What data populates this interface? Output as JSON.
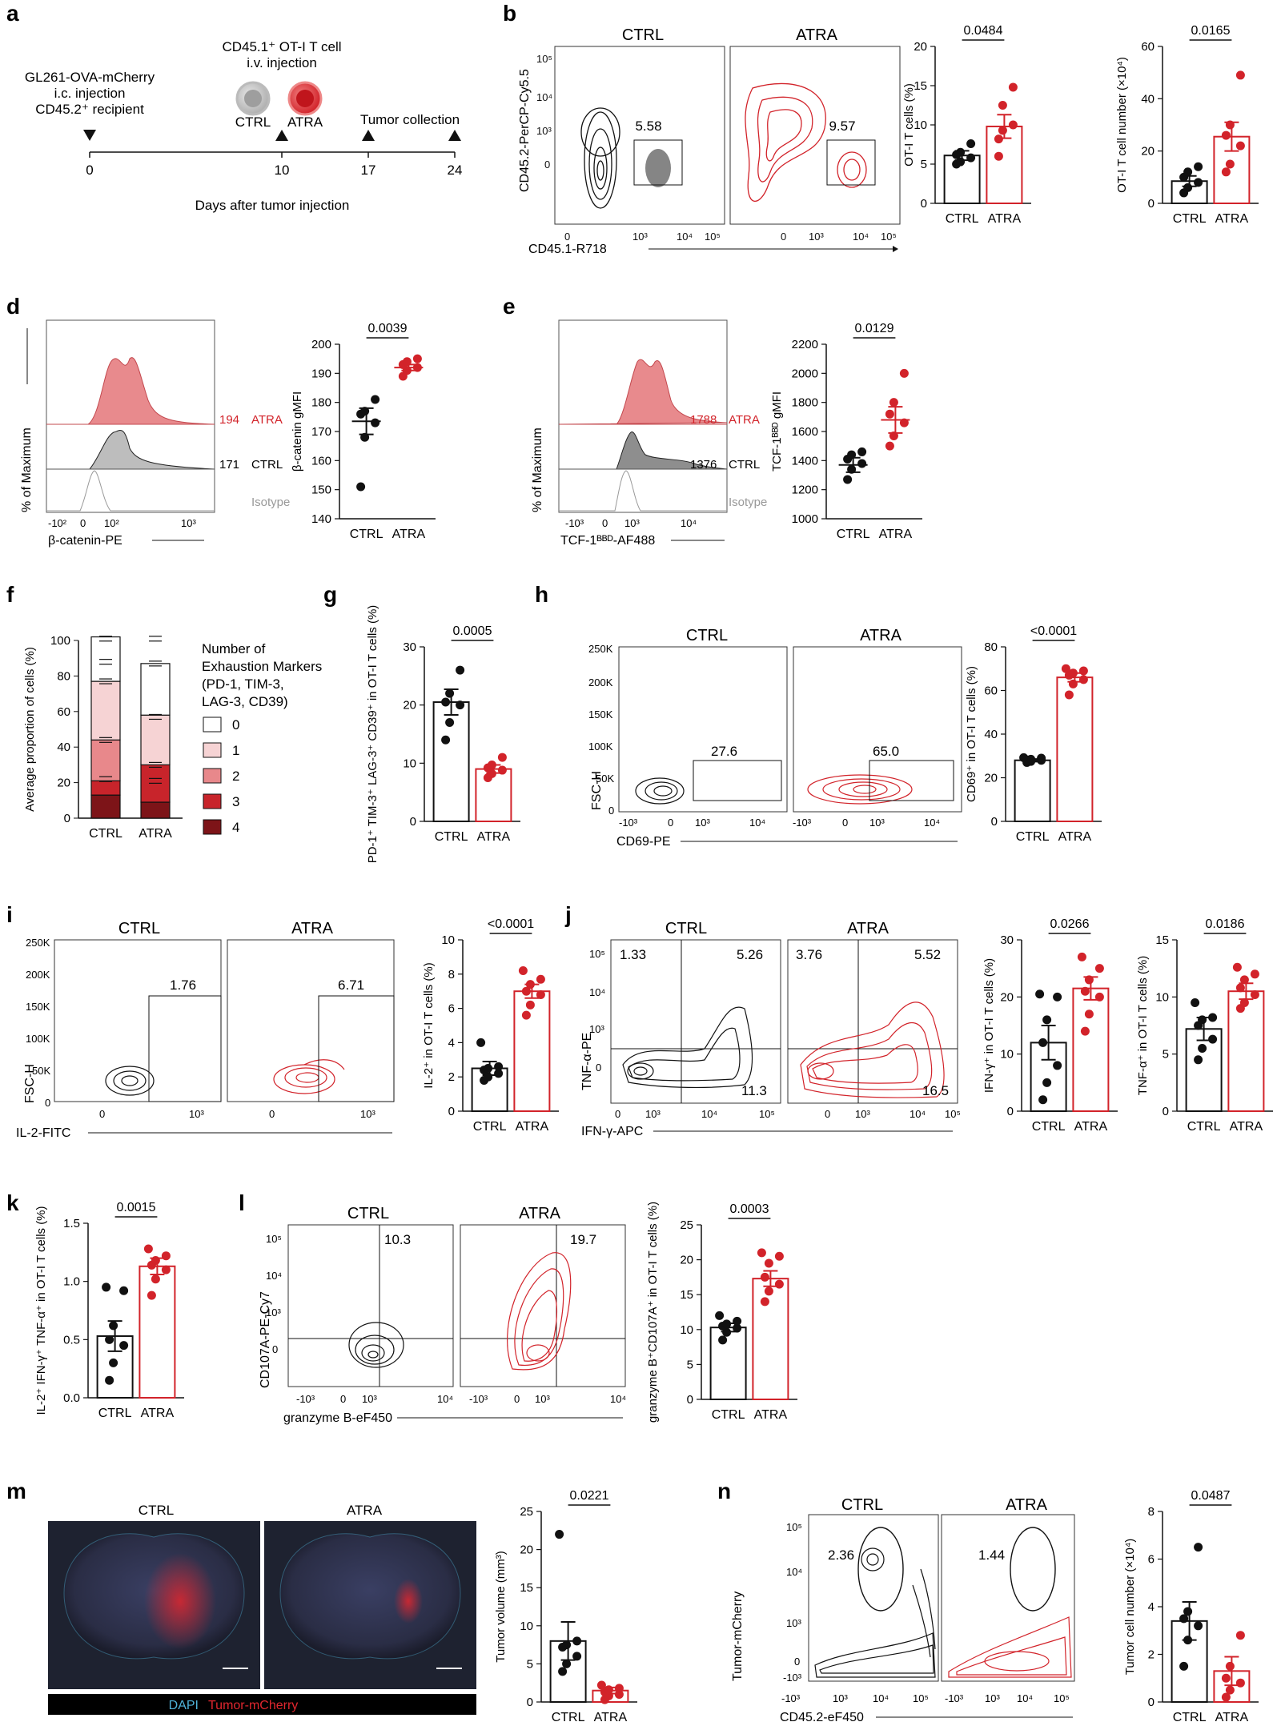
{
  "colors": {
    "ctrl": "#111111",
    "atra": "#d2232a",
    "isotype": "#9a9a9a",
    "atra_fill": "#e88a8d",
    "ctrl_fill": "#b8b8b8",
    "dapi": "#4fb3d9",
    "mcherry": "#e0262e"
  },
  "panels": {
    "a": {
      "letter": "a",
      "cell_inj": "GL261-OVA-mCherry",
      "cell_inj2": "i.c. injection",
      "recipient": "CD45.2⁺ recipient",
      "tcell": "CD45.1⁺ OT-I T cell",
      "tcell2": "i.v. injection",
      "ctrl": "CTRL",
      "atra": "ATRA",
      "collection": "Tumor collection",
      "days": [
        "0",
        "10",
        "17",
        "24"
      ],
      "xlabel": "Days after tumor injection"
    },
    "b": {
      "letter": "b",
      "ctrl": "CTRL",
      "atra": "ATRA",
      "ylabel": "CD45.2-PerCP-Cy5.5",
      "xlabel": "CD45.1-R718",
      "gate_ctrl": "5.58",
      "gate_atra": "9.57"
    },
    "d": {
      "letter": "d",
      "ylabel": "% of Maximum",
      "xlabel": "β-catenin-PE",
      "lab_atra": "194",
      "lab_ctrl": "171",
      "atra": "ATRA",
      "ctrl": "CTRL",
      "iso": "Isotype"
    },
    "e": {
      "letter": "e",
      "ylabel": "% of Maximum",
      "xlabel": "TCF-1ᴮᴮᴰ-AF488",
      "lab_atra": "1788",
      "lab_ctrl": "1376",
      "atra": "ATRA",
      "ctrl": "CTRL",
      "iso": "Isotype"
    },
    "f": {
      "letter": "f",
      "legend_title1": "Number of",
      "legend_title2": "Exhaustion Markers",
      "legend_title3": "(PD-1, TIM-3,",
      "legend_title4": "LAG-3, CD39)",
      "levels": [
        "0",
        "1",
        "2",
        "3",
        "4"
      ]
    },
    "g": {
      "letter": "g"
    },
    "h": {
      "letter": "h",
      "ctrl": "CTRL",
      "atra": "ATRA",
      "ylabel": "FSC-H",
      "xlabel": "CD69-PE",
      "gate_ctrl": "27.6",
      "gate_atra": "65.0"
    },
    "i": {
      "letter": "i",
      "ctrl": "CTRL",
      "atra": "ATRA",
      "ylabel": "FSC-H",
      "xlabel": "IL-2-FITC",
      "gate_ctrl": "1.76",
      "gate_atra": "6.71"
    },
    "j": {
      "letter": "j",
      "ctrl": "CTRL",
      "atra": "ATRA",
      "ylabel": "TNF-α-PE",
      "xlabel": "IFN-γ-APC",
      "q_ctrl": [
        "1.33",
        "5.26",
        "11.3"
      ],
      "q_atra": [
        "3.76",
        "5.52",
        "16.5"
      ]
    },
    "k": {
      "letter": "k"
    },
    "l": {
      "letter": "l",
      "ctrl": "CTRL",
      "atra": "ATRA",
      "ylabel": "CD107A-PE-Cy7",
      "xlabel": "granzyme B-eF450",
      "gate_ctrl": "10.3",
      "gate_atra": "19.7"
    },
    "m": {
      "letter": "m",
      "ctrl": "CTRL",
      "atra": "ATRA",
      "dapi": "DAPI",
      "mcherry": "Tumor-mCherry"
    },
    "n": {
      "letter": "n",
      "ctrl": "CTRL",
      "atra": "ATRA",
      "ylabel": "Tumor-mCherry",
      "xlabel": "CD45.2-eF450",
      "gate_ctrl": "2.36",
      "gate_atra": "1.44"
    }
  },
  "chart_data": [
    {
      "panel": "b",
      "type": "bar",
      "categories": [
        "CTRL",
        "ATRA"
      ],
      "ylabel": "OT-I T cells (%)",
      "ylim": [
        0,
        20
      ],
      "yticks": [
        0,
        5,
        10,
        15,
        20
      ],
      "pvalue": "0.0484",
      "means": [
        6.1,
        9.8
      ],
      "sem": [
        0.6,
        1.5
      ],
      "points": [
        [
          5.0,
          6.5,
          5.8,
          6.2,
          5.3,
          7.6
        ],
        [
          6.0,
          9.3,
          10.0,
          8.2,
          12.5,
          14.8
        ]
      ]
    },
    {
      "panel": "c",
      "type": "bar",
      "categories": [
        "CTRL",
        "ATRA"
      ],
      "ylabel": "OT-I T cell number (×10⁴)",
      "ylim": [
        0,
        60
      ],
      "yticks": [
        0,
        20,
        40,
        60
      ],
      "pvalue": "0.0165",
      "means": [
        8.5,
        25.5
      ],
      "sem": [
        2.0,
        5.5
      ],
      "points": [
        [
          4,
          6,
          8,
          10,
          12,
          14
        ],
        [
          12,
          15,
          22,
          26,
          30,
          49
        ]
      ]
    },
    {
      "panel": "d",
      "type": "scatter",
      "categories": [
        "CTRL",
        "ATRA"
      ],
      "ylabel": "β-catenin gMFI",
      "ylim": [
        140,
        200
      ],
      "yticks": [
        140,
        150,
        160,
        170,
        180,
        190,
        200
      ],
      "pvalue": "0.0039",
      "means": [
        173.5,
        192
      ],
      "sem": [
        4.5,
        1.0
      ],
      "points": [
        [
          151,
          168,
          173,
          176,
          177,
          181
        ],
        [
          189,
          191,
          192,
          193,
          194,
          195
        ]
      ]
    },
    {
      "panel": "e",
      "type": "scatter",
      "categories": [
        "CTRL",
        "ATRA"
      ],
      "ylabel": "TCF-1ᴮᴮᴰ gMFI",
      "ylim": [
        1000,
        2200
      ],
      "yticks": [
        1000,
        1200,
        1400,
        1600,
        1800,
        2000,
        2200
      ],
      "pvalue": "0.0129",
      "means": [
        1370,
        1680
      ],
      "sem": [
        50,
        90
      ],
      "points": [
        [
          1270,
          1340,
          1380,
          1410,
          1440,
          1460
        ],
        [
          1500,
          1570,
          1660,
          1720,
          1800,
          2000
        ]
      ]
    },
    {
      "panel": "f",
      "type": "bar",
      "stacked": true,
      "categories": [
        "CTRL",
        "ATRA"
      ],
      "ylabel": "Average proportion of cells (%)",
      "ylim": [
        0,
        100
      ],
      "yticks": [
        0,
        20,
        40,
        60,
        80,
        100
      ],
      "series": [
        {
          "name": "4",
          "values": [
            13,
            9
          ]
        },
        {
          "name": "3",
          "values": [
            8,
            21
          ]
        },
        {
          "name": "2",
          "values": [
            23,
            0
          ]
        },
        {
          "name": "1",
          "values": [
            33,
            28
          ]
        },
        {
          "name": "0",
          "values": [
            25,
            29
          ]
        }
      ],
      "error_caps": [
        [
          22,
          21,
          44,
          30,
          77,
          57,
          88,
          87,
          101,
          101
        ]
      ]
    },
    {
      "panel": "g",
      "type": "bar",
      "categories": [
        "CTRL",
        "ATRA"
      ],
      "ylabel": "PD-1⁺ TIM-3⁺ LAG-3⁺ CD39⁺ in OT-I T cells (%)",
      "ylim": [
        0,
        30
      ],
      "yticks": [
        0,
        10,
        20,
        30
      ],
      "pvalue": "0.0005",
      "means": [
        20.5,
        9.0
      ],
      "sem": [
        2.2,
        0.7
      ],
      "points": [
        [
          14,
          17,
          20,
          20.5,
          22,
          26
        ],
        [
          7.5,
          8.2,
          8.8,
          9.2,
          9.7,
          11
        ]
      ]
    },
    {
      "panel": "h",
      "type": "bar",
      "categories": [
        "CTRL",
        "ATRA"
      ],
      "ylabel": "CD69⁺ in OT-I T cells (%)",
      "ylim": [
        0,
        80
      ],
      "yticks": [
        0,
        20,
        40,
        60,
        80
      ],
      "pvalue": "<0.0001",
      "means": [
        28,
        66
      ],
      "sem": [
        0.6,
        2.0
      ],
      "points": [
        [
          27,
          27.5,
          28,
          28.2,
          28.5,
          29,
          29.2
        ],
        [
          58,
          63,
          65,
          67,
          68,
          69,
          70
        ]
      ]
    },
    {
      "panel": "i",
      "type": "bar",
      "categories": [
        "CTRL",
        "ATRA"
      ],
      "ylabel": "IL-2⁺ in OT-I T cells (%)",
      "ylim": [
        0,
        10
      ],
      "yticks": [
        0,
        2,
        4,
        6,
        8,
        10
      ],
      "pvalue": "<0.0001",
      "means": [
        2.5,
        7.0
      ],
      "sem": [
        0.4,
        0.4
      ],
      "points": [
        [
          1.8,
          2.0,
          2.2,
          2.4,
          2.5,
          2.6,
          4.0
        ],
        [
          5.6,
          6.2,
          6.8,
          7.0,
          7.4,
          7.7,
          8.2
        ]
      ]
    },
    {
      "panel": "j1",
      "type": "bar",
      "categories": [
        "CTRL",
        "ATRA"
      ],
      "ylabel": "IFN-γ⁺ in OT-I T cells (%)",
      "ylim": [
        0,
        30
      ],
      "yticks": [
        0,
        10,
        20,
        30
      ],
      "pvalue": "0.0266",
      "means": [
        12,
        21.5
      ],
      "sem": [
        3.0,
        2.0
      ],
      "points": [
        [
          2,
          5,
          8,
          12,
          16,
          20,
          20.5
        ],
        [
          14,
          17,
          20,
          21,
          23,
          25,
          27
        ]
      ]
    },
    {
      "panel": "j2",
      "type": "bar",
      "categories": [
        "CTRL",
        "ATRA"
      ],
      "ylabel": "TNF-α⁺ in OT-I T cells (%)",
      "ylim": [
        0,
        15
      ],
      "yticks": [
        0,
        5,
        10,
        15
      ],
      "pvalue": "0.0186",
      "means": [
        7.2,
        10.5
      ],
      "sem": [
        1.0,
        0.7
      ],
      "points": [
        [
          4.5,
          5.5,
          6.3,
          7.5,
          8.0,
          8.2,
          9.5
        ],
        [
          9.0,
          9.5,
          10.2,
          10.8,
          11.5,
          12.0,
          12.6
        ]
      ]
    },
    {
      "panel": "k",
      "type": "bar",
      "categories": [
        "CTRL",
        "ATRA"
      ],
      "ylabel": "IL-2⁺ IFN-γ⁺ TNF-α⁺ in OT-I T cells (%)",
      "ylim": [
        0,
        1.5
      ],
      "yticks": [
        0.0,
        0.5,
        1.0,
        1.5
      ],
      "pvalue": "0.0015",
      "means": [
        0.53,
        1.13
      ],
      "sem": [
        0.13,
        0.07
      ],
      "points": [
        [
          0.15,
          0.3,
          0.45,
          0.5,
          0.62,
          0.92,
          0.95
        ],
        [
          0.88,
          1.02,
          1.1,
          1.14,
          1.18,
          1.22,
          1.28
        ]
      ]
    },
    {
      "panel": "l",
      "type": "bar",
      "categories": [
        "CTRL",
        "ATRA"
      ],
      "ylabel": "granzyme B⁺CD107A⁺ in OT-I T cells (%)",
      "ylim": [
        0,
        25
      ],
      "yticks": [
        0,
        5,
        10,
        15,
        20,
        25
      ],
      "pvalue": "0.0003",
      "means": [
        10.3,
        17.3
      ],
      "sem": [
        0.6,
        1.1
      ],
      "points": [
        [
          8.5,
          9.6,
          10.2,
          10.5,
          10.8,
          11.2,
          12.0
        ],
        [
          14.0,
          15.5,
          16.5,
          17.5,
          19.5,
          20.5,
          21.0
        ]
      ]
    },
    {
      "panel": "m",
      "type": "bar",
      "categories": [
        "CTRL",
        "ATRA"
      ],
      "ylabel": "Tumor volume (mm³)",
      "ylim": [
        0,
        25
      ],
      "yticks": [
        0,
        5,
        10,
        15,
        20,
        25
      ],
      "pvalue": "0.0221",
      "means": [
        8,
        1.5
      ],
      "sem": [
        2.5,
        0.4
      ],
      "points": [
        [
          4.0,
          5.0,
          6.0,
          7.2,
          7.5,
          8.0,
          22.0
        ],
        [
          0.3,
          0.8,
          1.0,
          1.3,
          1.6,
          1.8,
          2.2
        ]
      ]
    },
    {
      "panel": "n",
      "type": "bar",
      "categories": [
        "CTRL",
        "ATRA"
      ],
      "ylabel": "Tumor cell number (×10⁴)",
      "ylim": [
        0,
        8
      ],
      "yticks": [
        0,
        2,
        4,
        6,
        8
      ],
      "pvalue": "0.0487",
      "means": [
        3.4,
        1.3
      ],
      "sem": [
        0.8,
        0.6
      ],
      "points": [
        [
          1.5,
          2.6,
          3.2,
          3.5,
          3.8,
          6.5
        ],
        [
          0.2,
          0.5,
          0.8,
          1.0,
          1.5,
          2.8
        ]
      ]
    }
  ]
}
